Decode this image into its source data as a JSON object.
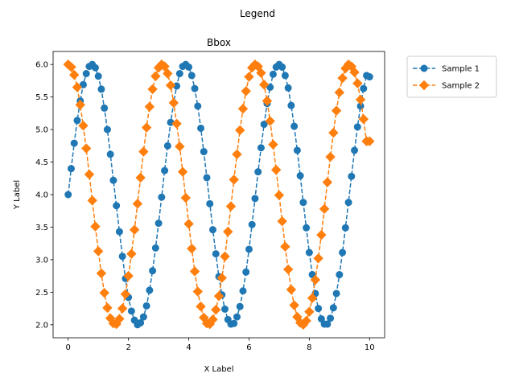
{
  "chart_data": {
    "type": "line",
    "suptitle": "Legend",
    "title": "Bbox",
    "xlabel": "X Label",
    "ylabel": "Y Label",
    "xlim": [
      -0.5,
      10.5
    ],
    "ylim": [
      1.8,
      6.2
    ],
    "xticks": [
      0,
      2,
      4,
      6,
      8,
      10
    ],
    "yticks": [
      2.0,
      2.5,
      3.0,
      3.5,
      4.0,
      4.5,
      5.0,
      5.5,
      6.0
    ],
    "ytick_labels": [
      "2.0",
      "2.5",
      "3.0",
      "3.5",
      "4.0",
      "4.5",
      "5.0",
      "5.5",
      "6.0"
    ],
    "grid": false,
    "legend_position": "outside top-right",
    "x": [
      0.0,
      0.1,
      0.2,
      0.3,
      0.4,
      0.5,
      0.6,
      0.7,
      0.8,
      0.9,
      1.0,
      1.1,
      1.2,
      1.3,
      1.4,
      1.5,
      1.6,
      1.7,
      1.8,
      1.9,
      2.0,
      2.1,
      2.2,
      2.3,
      2.4,
      2.5,
      2.6,
      2.7,
      2.8,
      2.9,
      3.0,
      3.1,
      3.2,
      3.3,
      3.4,
      3.5,
      3.6,
      3.7,
      3.8,
      3.9,
      4.0,
      4.1,
      4.2,
      4.3,
      4.4,
      4.5,
      4.6,
      4.7,
      4.8,
      4.9,
      5.0,
      5.1,
      5.2,
      5.3,
      5.4,
      5.5,
      5.6,
      5.7,
      5.8,
      5.9,
      6.0,
      6.1,
      6.2,
      6.3,
      6.4,
      6.5,
      6.6,
      6.7,
      6.8,
      6.9,
      7.0,
      7.1,
      7.2,
      7.3,
      7.4,
      7.5,
      7.6,
      7.7,
      7.8,
      7.9,
      8.0,
      8.1,
      8.2,
      8.3,
      8.4,
      8.5,
      8.6,
      8.7,
      8.8,
      8.9,
      9.0,
      9.1,
      9.2,
      9.3,
      9.4,
      9.5,
      9.6,
      9.7,
      9.8,
      9.9,
      10.0
    ],
    "series": [
      {
        "name": "Sample 1",
        "marker": "circle",
        "linestyle": "dashed",
        "color": "#1f77b4",
        "values": [
          4.0,
          4.4,
          4.79,
          5.14,
          5.44,
          5.69,
          5.86,
          5.97,
          6.0,
          5.95,
          5.82,
          5.62,
          5.33,
          5.0,
          4.62,
          4.22,
          3.83,
          3.43,
          3.05,
          2.71,
          2.42,
          2.21,
          2.07,
          2.0,
          2.03,
          2.12,
          2.29,
          2.53,
          2.83,
          3.18,
          3.56,
          3.96,
          4.37,
          4.75,
          5.11,
          5.41,
          5.67,
          5.86,
          5.97,
          6.0,
          5.96,
          5.83,
          5.63,
          5.36,
          5.02,
          4.66,
          4.26,
          3.86,
          3.46,
          3.09,
          2.74,
          2.46,
          2.24,
          2.08,
          2.01,
          2.02,
          2.12,
          2.28,
          2.52,
          2.81,
          3.16,
          3.54,
          3.94,
          4.35,
          4.72,
          5.08,
          5.4,
          5.65,
          5.85,
          5.96,
          6.0,
          5.96,
          5.83,
          5.64,
          5.37,
          5.05,
          4.68,
          4.29,
          3.88,
          3.49,
          3.11,
          2.77,
          2.48,
          2.25,
          2.09,
          2.01,
          2.01,
          2.1,
          2.26,
          2.48,
          2.77,
          3.11,
          3.49,
          3.88,
          4.28,
          4.68,
          5.04,
          5.36,
          5.63,
          5.83,
          5.81
        ]
      },
      {
        "name": "Sample 2",
        "marker": "diamond",
        "linestyle": "dashed",
        "color": "#ff7f0e",
        "values": [
          6.0,
          5.96,
          5.84,
          5.65,
          5.38,
          5.06,
          4.71,
          4.31,
          3.91,
          3.51,
          3.13,
          2.79,
          2.49,
          2.26,
          2.1,
          2.02,
          2.01,
          2.09,
          2.25,
          2.47,
          2.75,
          3.09,
          3.46,
          3.86,
          4.26,
          4.66,
          5.03,
          5.35,
          5.62,
          5.82,
          5.95,
          6.0,
          5.97,
          5.86,
          5.68,
          5.41,
          5.09,
          4.74,
          4.35,
          3.95,
          3.55,
          3.17,
          2.82,
          2.51,
          2.28,
          2.11,
          2.02,
          2.01,
          2.08,
          2.23,
          2.44,
          2.72,
          3.05,
          3.43,
          3.82,
          4.23,
          4.62,
          4.99,
          5.32,
          5.59,
          5.81,
          5.95,
          6.0,
          5.97,
          5.87,
          5.69,
          5.44,
          5.13,
          4.77,
          4.38,
          3.99,
          3.59,
          3.2,
          2.85,
          2.54,
          2.3,
          2.12,
          2.03,
          2.0,
          2.06,
          2.2,
          2.41,
          2.69,
          3.02,
          3.38,
          3.78,
          4.19,
          4.58,
          4.95,
          5.29,
          5.57,
          5.79,
          5.94,
          6.0,
          5.97,
          5.88,
          5.71,
          5.46,
          5.16,
          4.82,
          4.82
        ]
      }
    ]
  }
}
